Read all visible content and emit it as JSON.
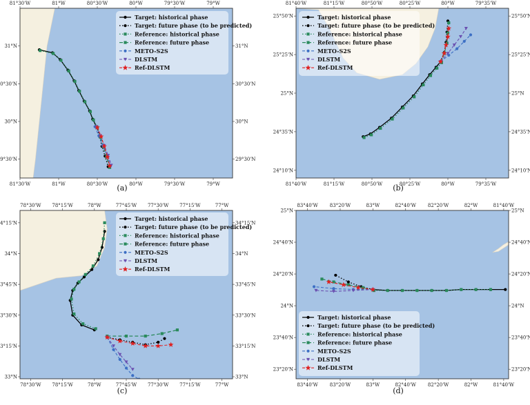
{
  "colors": {
    "sea": "#a6c3e4",
    "land": "#f5f0e0",
    "land_edge": "#d8d2c2",
    "frame": "#333333",
    "legend_bg": "#ffffff",
    "target": "#000000",
    "reference": "#2a8a5c",
    "meto": "#3c6fc4",
    "dlstm": "#6a4fb0",
    "refdlstm": "#e02020"
  },
  "legend_labels": {
    "target_hist": "Target: historical phase",
    "target_future": "Target: future phase (to be predicted)",
    "ref_hist": "Reference: historical phase",
    "ref_future": "Reference: future phase",
    "meto": "METO-S2S",
    "dlstm": "DLSTM",
    "refdlstm": "Ref-DLSTM"
  },
  "chart_data": [
    {
      "type": "line",
      "panel": "(a)",
      "xlim": [
        -81.5,
        -78.75
      ],
      "ylim": [
        29.25,
        31.5
      ],
      "xticks": [
        -81.5,
        -81.0,
        -80.5,
        -80.0,
        -79.5,
        -79.0
      ],
      "xtick_labels": [
        "81°30'W",
        "81°W",
        "80°30'W",
        "80°W",
        "79°30'W",
        "79°W"
      ],
      "yticks": [
        29.5,
        30.0,
        30.5,
        31.0
      ],
      "ytick_labels": [
        "29°30'N",
        "30°N",
        "30°30'N",
        "31°N"
      ],
      "land": [
        [
          -81.5,
          31.5
        ],
        [
          -81.05,
          31.5
        ],
        [
          -81.15,
          31.0
        ],
        [
          -81.2,
          30.5
        ],
        [
          -81.25,
          30.0
        ],
        [
          -81.3,
          29.5
        ],
        [
          -81.33,
          29.25
        ],
        [
          -81.5,
          29.25
        ]
      ],
      "legend_position": "top-right",
      "series": [
        {
          "key": "target_hist",
          "lon": [
            -81.25,
            -81.08,
            -80.98,
            -80.88,
            -80.8,
            -80.74,
            -80.67,
            -80.6,
            -80.56,
            -80.51
          ],
          "lat": [
            30.95,
            30.91,
            30.82,
            30.68,
            30.54,
            30.41,
            30.27,
            30.14,
            30.03,
            29.93
          ]
        },
        {
          "key": "target_future",
          "lon": [
            -80.51,
            -80.47,
            -80.44,
            -80.4,
            -80.36
          ],
          "lat": [
            29.93,
            29.8,
            29.67,
            29.54,
            29.4
          ]
        },
        {
          "key": "ref_hist",
          "lon": [
            -81.24,
            -81.07,
            -80.97,
            -80.87,
            -80.79,
            -80.73,
            -80.66,
            -80.59,
            -80.55,
            -80.5
          ],
          "lat": [
            30.94,
            30.9,
            30.81,
            30.67,
            30.53,
            30.4,
            30.26,
            30.13,
            30.02,
            29.92
          ]
        },
        {
          "key": "ref_future",
          "lon": [
            -80.5,
            -80.46,
            -80.42,
            -80.38,
            -80.34
          ],
          "lat": [
            29.92,
            29.79,
            29.66,
            29.53,
            29.39
          ]
        },
        {
          "key": "meto",
          "lon": [
            -80.53,
            -80.48,
            -80.43,
            -80.37,
            -80.33
          ],
          "lat": [
            29.93,
            29.81,
            29.68,
            29.54,
            29.41
          ]
        },
        {
          "key": "dlstm",
          "lon": [
            -80.51,
            -80.46,
            -80.41,
            -80.36,
            -80.32
          ],
          "lat": [
            29.93,
            29.81,
            29.68,
            29.55,
            29.42
          ]
        },
        {
          "key": "refdlstm",
          "lon": [
            -80.5,
            -80.45,
            -80.41,
            -80.37,
            -80.34
          ],
          "lat": [
            29.92,
            29.8,
            29.67,
            29.53,
            29.41
          ]
        }
      ]
    },
    {
      "type": "line",
      "panel": "(b)",
      "xlim": [
        -81.6667,
        -79.3333
      ],
      "ylim": [
        24.0833,
        25.9167
      ],
      "xticks": [
        -81.6667,
        -81.25,
        -80.8333,
        -80.4167,
        -80.0,
        -79.5833
      ],
      "xtick_labels": [
        "81°40'W",
        "81°15'W",
        "80°50'W",
        "80°25'W",
        "80°W",
        "79°35'W"
      ],
      "yticks": [
        24.1667,
        24.5833,
        25.0,
        25.4167,
        25.8333
      ],
      "ytick_labels": [
        "24°10'N",
        "24°35'N",
        "25°N",
        "25°25'N",
        "25°50'N"
      ],
      "land": [
        [
          -81.6667,
          25.9167
        ],
        [
          -80.1,
          25.9167
        ],
        [
          -80.14,
          25.7
        ],
        [
          -80.22,
          25.5
        ],
        [
          -80.35,
          25.32
        ],
        [
          -80.5,
          25.2
        ],
        [
          -80.75,
          25.15
        ],
        [
          -81.0,
          25.22
        ],
        [
          -81.15,
          25.38
        ],
        [
          -81.3,
          25.7
        ],
        [
          -81.42,
          25.9
        ],
        [
          -81.6667,
          25.9167
        ]
      ],
      "legend_position": "top-left",
      "series": [
        {
          "key": "target_hist",
          "lon": [
            -80.93,
            -80.85,
            -80.75,
            -80.62,
            -80.5,
            -80.38,
            -80.28,
            -80.2,
            -80.13,
            -80.08
          ],
          "lat": [
            24.53,
            24.56,
            24.63,
            24.73,
            24.85,
            24.97,
            25.1,
            25.2,
            25.28,
            25.34
          ]
        },
        {
          "key": "target_future",
          "lon": [
            -80.08,
            -80.04,
            -80.02,
            -80.01,
            -80.0
          ],
          "lat": [
            25.34,
            25.44,
            25.55,
            25.66,
            25.78
          ]
        },
        {
          "key": "ref_hist",
          "lon": [
            -80.92,
            -80.84,
            -80.74,
            -80.61,
            -80.49,
            -80.37,
            -80.27,
            -80.19,
            -80.12,
            -80.07
          ],
          "lat": [
            24.52,
            24.55,
            24.62,
            24.72,
            24.84,
            24.96,
            25.09,
            25.19,
            25.27,
            25.33
          ]
        },
        {
          "key": "ref_future",
          "lon": [
            -80.07,
            -80.04,
            -80.01,
            -80.0,
            -79.99
          ],
          "lat": [
            25.33,
            25.43,
            25.54,
            25.65,
            25.76
          ]
        },
        {
          "key": "meto",
          "lon": [
            -80.08,
            -79.99,
            -79.9,
            -79.82,
            -79.75
          ],
          "lat": [
            25.34,
            25.41,
            25.48,
            25.56,
            25.63
          ]
        },
        {
          "key": "dlstm",
          "lon": [
            -80.08,
            -80.0,
            -79.93,
            -79.86,
            -79.8
          ],
          "lat": [
            25.34,
            25.43,
            25.52,
            25.61,
            25.7
          ]
        },
        {
          "key": "refdlstm",
          "lon": [
            -80.08,
            -80.04,
            -80.02,
            -80.0,
            -79.99
          ],
          "lat": [
            25.34,
            25.43,
            25.52,
            25.61,
            25.7
          ]
        }
      ]
    },
    {
      "type": "line",
      "panel": "(c)",
      "xlim": [
        -78.5833,
        -76.9167
      ],
      "ylim": [
        32.9833,
        34.35
      ],
      "xticks": [
        -78.5,
        -78.25,
        -78.0,
        -77.75,
        -77.5,
        -77.25,
        -77.0
      ],
      "xtick_labels": [
        "78°30'W",
        "78°15'W",
        "78°W",
        "77°45'W",
        "77°30'W",
        "77°15'W",
        "77°W"
      ],
      "yticks": [
        33.0,
        33.25,
        33.5,
        33.75,
        34.0,
        34.25
      ],
      "ytick_labels": [
        "33°N",
        "33°15'N",
        "33°30'N",
        "33°45'N",
        "34°N",
        "34°15'N"
      ],
      "land": [
        [
          -78.5833,
          34.35
        ],
        [
          -77.92,
          34.35
        ],
        [
          -77.9,
          34.2
        ],
        [
          -77.92,
          34.05
        ],
        [
          -77.98,
          33.9
        ],
        [
          -78.1,
          33.82
        ],
        [
          -78.3,
          33.8
        ],
        [
          -78.5833,
          33.7
        ]
      ],
      "legend_position": "top-right",
      "series": [
        {
          "key": "target_hist",
          "lon": [
            -77.92,
            -77.94,
            -77.97,
            -78.02,
            -78.08,
            -78.13,
            -78.17,
            -78.19,
            -78.17,
            -78.1,
            -78.0
          ],
          "lat": [
            34.18,
            34.05,
            33.95,
            33.87,
            33.81,
            33.76,
            33.7,
            33.62,
            33.5,
            33.42,
            33.38
          ]
        },
        {
          "key": "target_future",
          "lon": [
            -77.9,
            -77.8,
            -77.7,
            -77.6,
            -77.5,
            -77.45
          ],
          "lat": [
            33.32,
            33.3,
            33.28,
            33.26,
            33.28,
            33.31
          ]
        },
        {
          "key": "ref_hist",
          "lon": [
            -77.92,
            -77.93,
            -77.96,
            -78.01,
            -78.07,
            -78.12,
            -78.16,
            -78.18,
            -78.16,
            -78.09,
            -77.99
          ],
          "lat": [
            34.25,
            34.12,
            34.0,
            33.9,
            33.83,
            33.77,
            33.71,
            33.63,
            33.51,
            33.43,
            33.39
          ]
        },
        {
          "key": "ref_future",
          "lon": [
            -77.9,
            -77.75,
            -77.6,
            -77.47,
            -77.35
          ],
          "lat": [
            33.33,
            33.33,
            33.33,
            33.35,
            33.38
          ]
        },
        {
          "key": "meto",
          "lon": [
            -77.9,
            -77.85,
            -77.8,
            -77.75,
            -77.7,
            -77.65
          ],
          "lat": [
            33.32,
            33.22,
            33.14,
            33.07,
            33.01,
            32.98
          ]
        },
        {
          "key": "dlstm",
          "lon": [
            -77.9,
            -77.85,
            -77.8,
            -77.75,
            -77.7
          ],
          "lat": [
            33.32,
            33.25,
            33.18,
            33.12,
            33.06
          ]
        },
        {
          "key": "refdlstm",
          "lon": [
            -77.9,
            -77.8,
            -77.7,
            -77.6,
            -77.5,
            -77.4
          ],
          "lat": [
            33.32,
            33.29,
            33.27,
            33.25,
            33.25,
            33.26
          ]
        }
      ]
    },
    {
      "type": "line",
      "panel": "(d)",
      "xlim": [
        -83.7833,
        -81.6167
      ],
      "ylim": [
        23.2333,
        25.0
      ],
      "xticks": [
        -83.6667,
        -83.3333,
        -83.0,
        -82.6667,
        -82.3333,
        -82.0,
        -81.6667
      ],
      "xtick_labels": [
        "83°40'W",
        "83°20'W",
        "83°W",
        "82°40'W",
        "82°20'W",
        "82°W",
        "81°40'W"
      ],
      "yticks": [
        23.3333,
        23.6667,
        24.0,
        24.3333,
        24.6667,
        25.0
      ],
      "ytick_labels": [
        "23°20'N",
        "23°40'N",
        "24°N",
        "24°20'N",
        "24°40'N",
        "25°N"
      ],
      "land": [
        [
          -81.78,
          24.56
        ],
        [
          -81.72,
          24.6
        ],
        [
          -81.67,
          24.64
        ],
        [
          -81.62,
          24.67
        ],
        [
          -81.6167,
          24.64
        ],
        [
          -81.66,
          24.61
        ],
        [
          -81.72,
          24.57
        ]
      ],
      "legend_position": "bottom-left",
      "series": [
        {
          "key": "target_hist",
          "lon": [
            -81.65,
            -81.8,
            -81.95,
            -82.1,
            -82.25,
            -82.4,
            -82.55,
            -82.7,
            -82.85,
            -83.0
          ],
          "lat": [
            24.17,
            24.17,
            24.17,
            24.17,
            24.16,
            24.16,
            24.16,
            24.16,
            24.16,
            24.17
          ]
        },
        {
          "key": "target_future",
          "lon": [
            -83.0,
            -83.12,
            -83.25,
            -83.38
          ],
          "lat": [
            24.17,
            24.2,
            24.25,
            24.32
          ]
        },
        {
          "key": "ref_hist",
          "lon": [
            -81.8,
            -81.95,
            -82.1,
            -82.25,
            -82.4,
            -82.55,
            -82.7,
            -82.85,
            -82.99
          ],
          "lat": [
            24.17,
            24.17,
            24.17,
            24.16,
            24.16,
            24.16,
            24.16,
            24.16,
            24.16
          ]
        },
        {
          "key": "ref_future",
          "lon": [
            -82.99,
            -83.1,
            -83.25,
            -83.4,
            -83.52
          ],
          "lat": [
            24.16,
            24.19,
            24.22,
            24.25,
            24.28
          ]
        },
        {
          "key": "meto",
          "lon": [
            -83.0,
            -83.2,
            -83.4,
            -83.6
          ],
          "lat": [
            24.17,
            24.17,
            24.18,
            24.2
          ]
        },
        {
          "key": "dlstm",
          "lon": [
            -83.0,
            -83.2,
            -83.4,
            -83.58
          ],
          "lat": [
            24.17,
            24.16,
            24.15,
            24.16
          ]
        },
        {
          "key": "refdlstm",
          "lon": [
            -83.0,
            -83.15,
            -83.3,
            -83.45
          ],
          "lat": [
            24.17,
            24.19,
            24.22,
            24.25
          ]
        }
      ]
    }
  ]
}
